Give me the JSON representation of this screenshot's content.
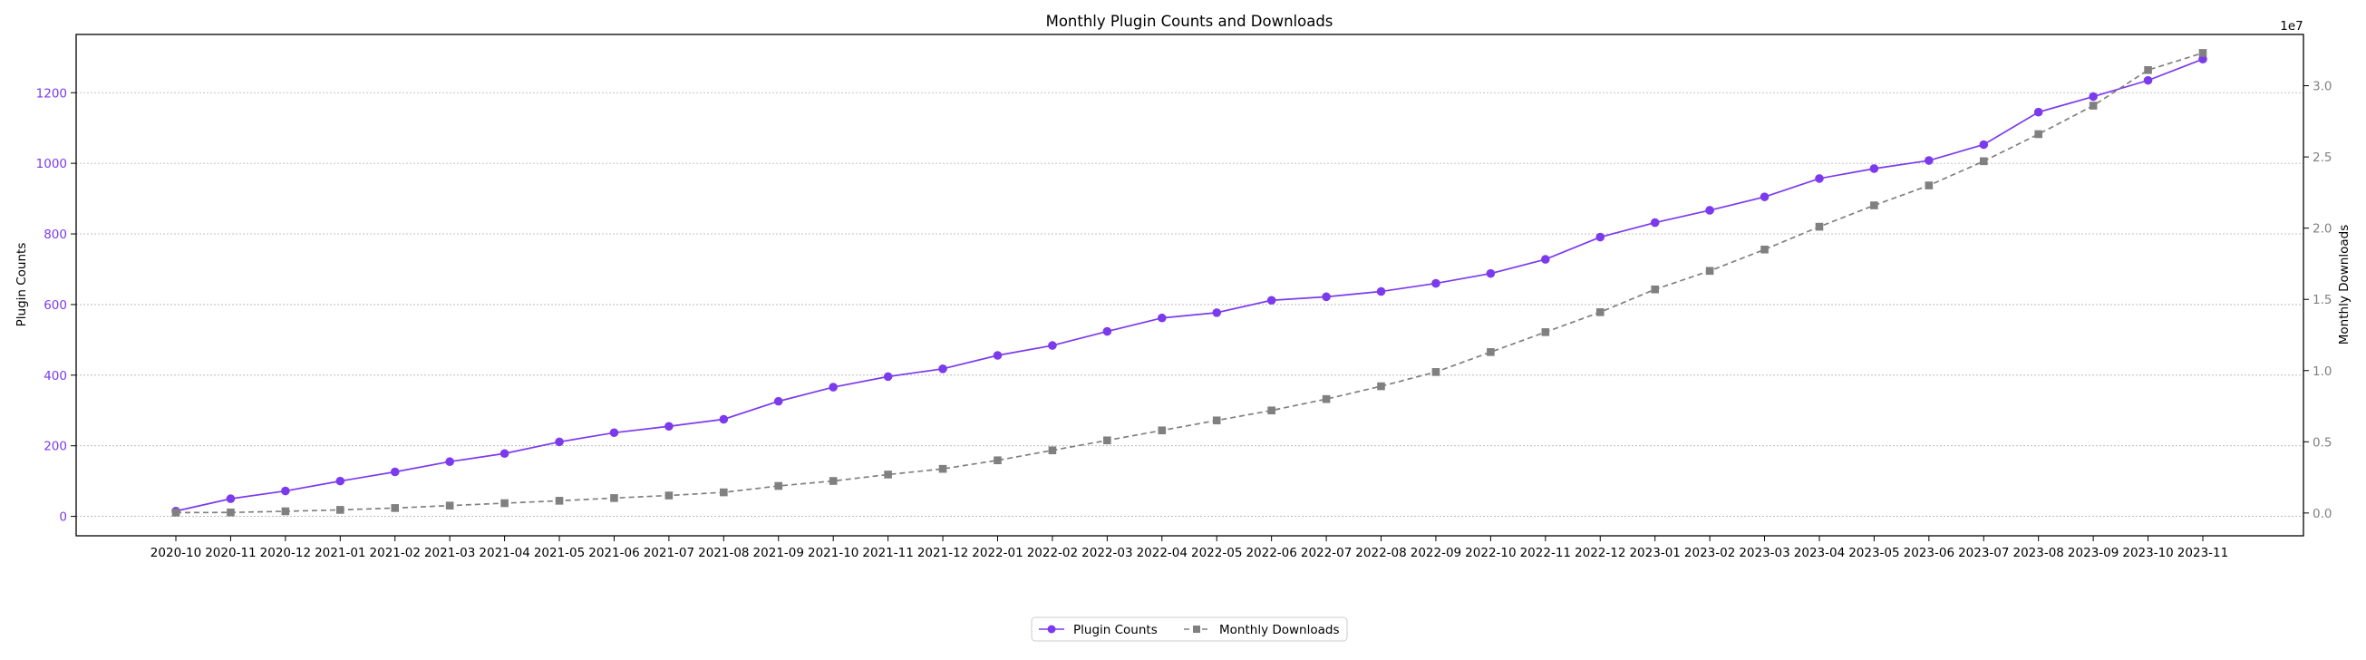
{
  "chart_data": {
    "type": "line",
    "title": "Monthly Plugin Counts and Downloads",
    "categories": [
      "2020-10",
      "2020-11",
      "2020-12",
      "2021-01",
      "2021-02",
      "2021-03",
      "2021-04",
      "2021-05",
      "2021-06",
      "2021-07",
      "2021-08",
      "2021-09",
      "2021-10",
      "2021-11",
      "2021-12",
      "2022-01",
      "2022-02",
      "2022-03",
      "2022-04",
      "2022-05",
      "2022-06",
      "2022-07",
      "2022-08",
      "2022-09",
      "2022-10",
      "2022-11",
      "2022-12",
      "2023-01",
      "2023-02",
      "2023-03",
      "2023-04",
      "2023-05",
      "2023-06",
      "2023-07",
      "2023-08",
      "2023-09",
      "2023-10",
      "2023-11"
    ],
    "left_axis": {
      "label": "Plugin Counts",
      "color": "#7c3aed",
      "ylim": [
        -55,
        1365
      ],
      "ticks": [
        0,
        200,
        400,
        600,
        800,
        1000,
        1200
      ],
      "tick_labels": [
        "0",
        "200",
        "400",
        "600",
        "800",
        "1000",
        "1200"
      ]
    },
    "right_axis": {
      "label": "Monthly Downloads",
      "color": "#808080",
      "offset_label": "1e7",
      "ylim": [
        -1600000,
        33600000
      ],
      "ticks": [
        0,
        5000000,
        10000000,
        15000000,
        20000000,
        25000000,
        30000000
      ],
      "tick_labels": [
        "0.0",
        "0.5",
        "1.0",
        "1.5",
        "2.0",
        "2.5",
        "3.0"
      ]
    },
    "series": [
      {
        "name": "Plugin Counts",
        "axis": "left",
        "color": "#7c3aed",
        "marker": "circle",
        "line": "solid",
        "values": [
          15,
          50,
          72,
          100,
          126,
          155,
          178,
          211,
          237,
          255,
          275,
          326,
          366,
          396,
          418,
          456,
          484,
          524,
          562,
          577,
          612,
          622,
          637,
          660,
          688,
          728,
          791,
          832,
          867,
          905,
          957,
          985,
          1008,
          1053,
          1145,
          1189,
          1235,
          1295
        ]
      },
      {
        "name": "Monthly Downloads",
        "axis": "right",
        "color": "#808080",
        "marker": "square",
        "line": "dashed",
        "values": [
          30000,
          40000,
          120000,
          220000,
          350000,
          520000,
          690000,
          860000,
          1050000,
          1230000,
          1450000,
          1900000,
          2250000,
          2700000,
          3100000,
          3700000,
          4400000,
          5100000,
          5800000,
          6500000,
          7200000,
          8000000,
          8900000,
          9900000,
          11300000,
          12700000,
          14100000,
          15700000,
          17000000,
          18500000,
          20100000,
          21600000,
          23000000,
          24700000,
          26600000,
          28600000,
          31100000,
          32300000
        ]
      }
    ],
    "grid": "horizontal-dotted",
    "legend": "bottom-center"
  }
}
